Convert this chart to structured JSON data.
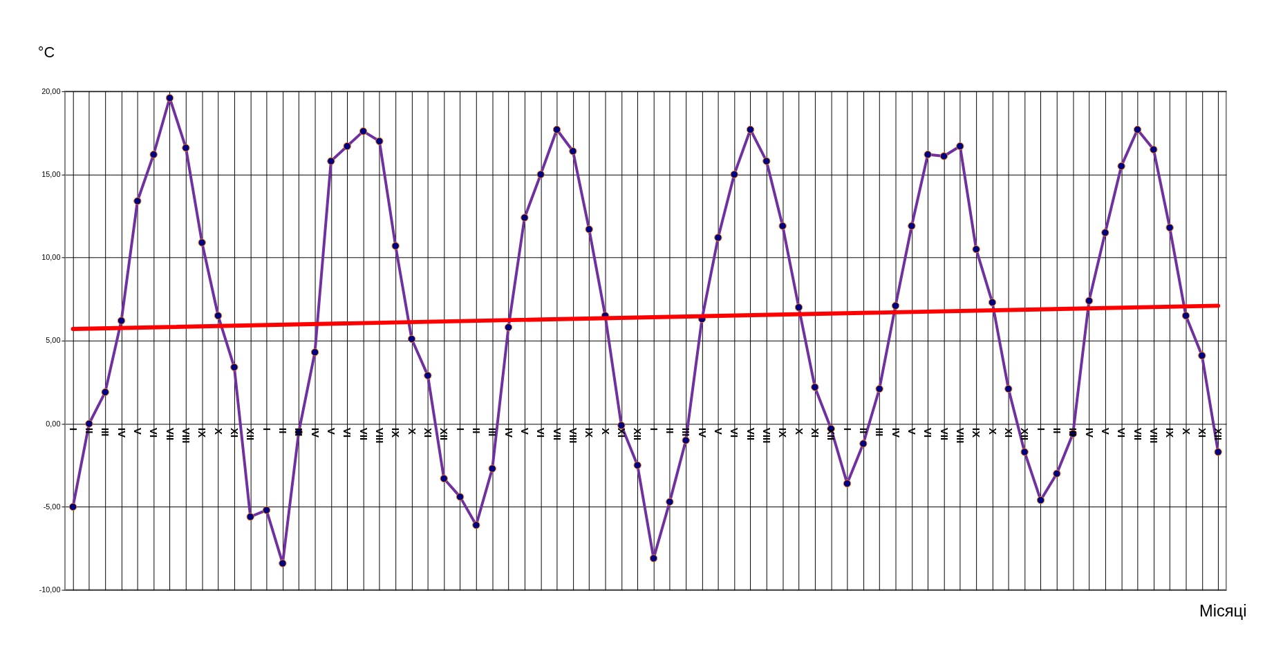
{
  "chart_data": {
    "type": "line",
    "ylabel": "°C",
    "xlabel": "Місяці",
    "categories": [
      "I",
      "II",
      "III",
      "IV",
      "V",
      "VI",
      "VII",
      "VIII",
      "IX",
      "X",
      "XI",
      "XII",
      "I",
      "II",
      "III",
      "IV",
      "V",
      "VI",
      "VII",
      "VIII",
      "IX",
      "X",
      "XI",
      "XII",
      "I",
      "II",
      "III",
      "IV",
      "V",
      "VI",
      "VII",
      "VIII",
      "IX",
      "X",
      "XI",
      "XII",
      "I",
      "II",
      "III",
      "IV",
      "V",
      "VI",
      "VII",
      "VIII",
      "IX",
      "X",
      "XI",
      "XII",
      "I",
      "II",
      "III",
      "IV",
      "V",
      "VI",
      "VII",
      "VIII",
      "IX",
      "X",
      "XI",
      "XII",
      "I",
      "II",
      "III",
      "IV",
      "V",
      "VI",
      "VII",
      "VIII",
      "IX",
      "X",
      "XI",
      "XII"
    ],
    "series": [
      {
        "color": "#7030a0",
        "marker": "circle",
        "values": [
          -5.0,
          0.0,
          1.9,
          6.2,
          13.4,
          16.2,
          19.6,
          16.6,
          10.9,
          6.5,
          3.4,
          -5.6,
          -5.2,
          -8.4,
          -0.5,
          4.3,
          15.8,
          16.7,
          17.6,
          17.0,
          10.7,
          5.1,
          2.9,
          -3.3,
          -4.4,
          -6.1,
          -2.7,
          5.8,
          12.4,
          15.0,
          17.7,
          16.4,
          11.7,
          6.5,
          -0.1,
          -2.5,
          -8.1,
          -4.7,
          -1.0,
          6.3,
          11.2,
          15.0,
          17.7,
          15.8,
          11.9,
          7.0,
          2.2,
          -0.3,
          -3.6,
          -1.2,
          2.1,
          7.1,
          11.9,
          16.2,
          16.1,
          16.7,
          10.5,
          7.3,
          2.1,
          -1.7,
          -4.6,
          -3.0,
          -0.6,
          7.4,
          11.5,
          15.5,
          17.7,
          16.5,
          11.8,
          6.5,
          4.1,
          -1.7
        ]
      },
      {
        "color": "#ff0000",
        "marker": "none",
        "values": [
          5.7,
          null,
          null,
          null,
          null,
          null,
          null,
          null,
          null,
          null,
          null,
          null,
          null,
          null,
          null,
          null,
          null,
          null,
          null,
          null,
          null,
          null,
          null,
          null,
          null,
          null,
          null,
          null,
          null,
          null,
          null,
          null,
          null,
          null,
          null,
          null,
          null,
          null,
          null,
          null,
          null,
          null,
          null,
          null,
          null,
          null,
          null,
          null,
          null,
          null,
          null,
          null,
          null,
          null,
          null,
          null,
          null,
          null,
          null,
          null,
          null,
          null,
          null,
          null,
          null,
          null,
          null,
          null,
          null,
          null,
          null,
          7.1
        ]
      }
    ],
    "ylim": [
      -10,
      20
    ],
    "yticks": [
      {
        "value": -10,
        "label": "-10,00"
      },
      {
        "value": -5,
        "label": "-5,00"
      },
      {
        "value": 0,
        "label": "0,00"
      },
      {
        "value": 5,
        "label": "5,00"
      },
      {
        "value": 10,
        "label": "10,00"
      },
      {
        "value": 15,
        "label": "15,00"
      },
      {
        "value": 20,
        "label": "20,00"
      }
    ],
    "grid": true
  }
}
